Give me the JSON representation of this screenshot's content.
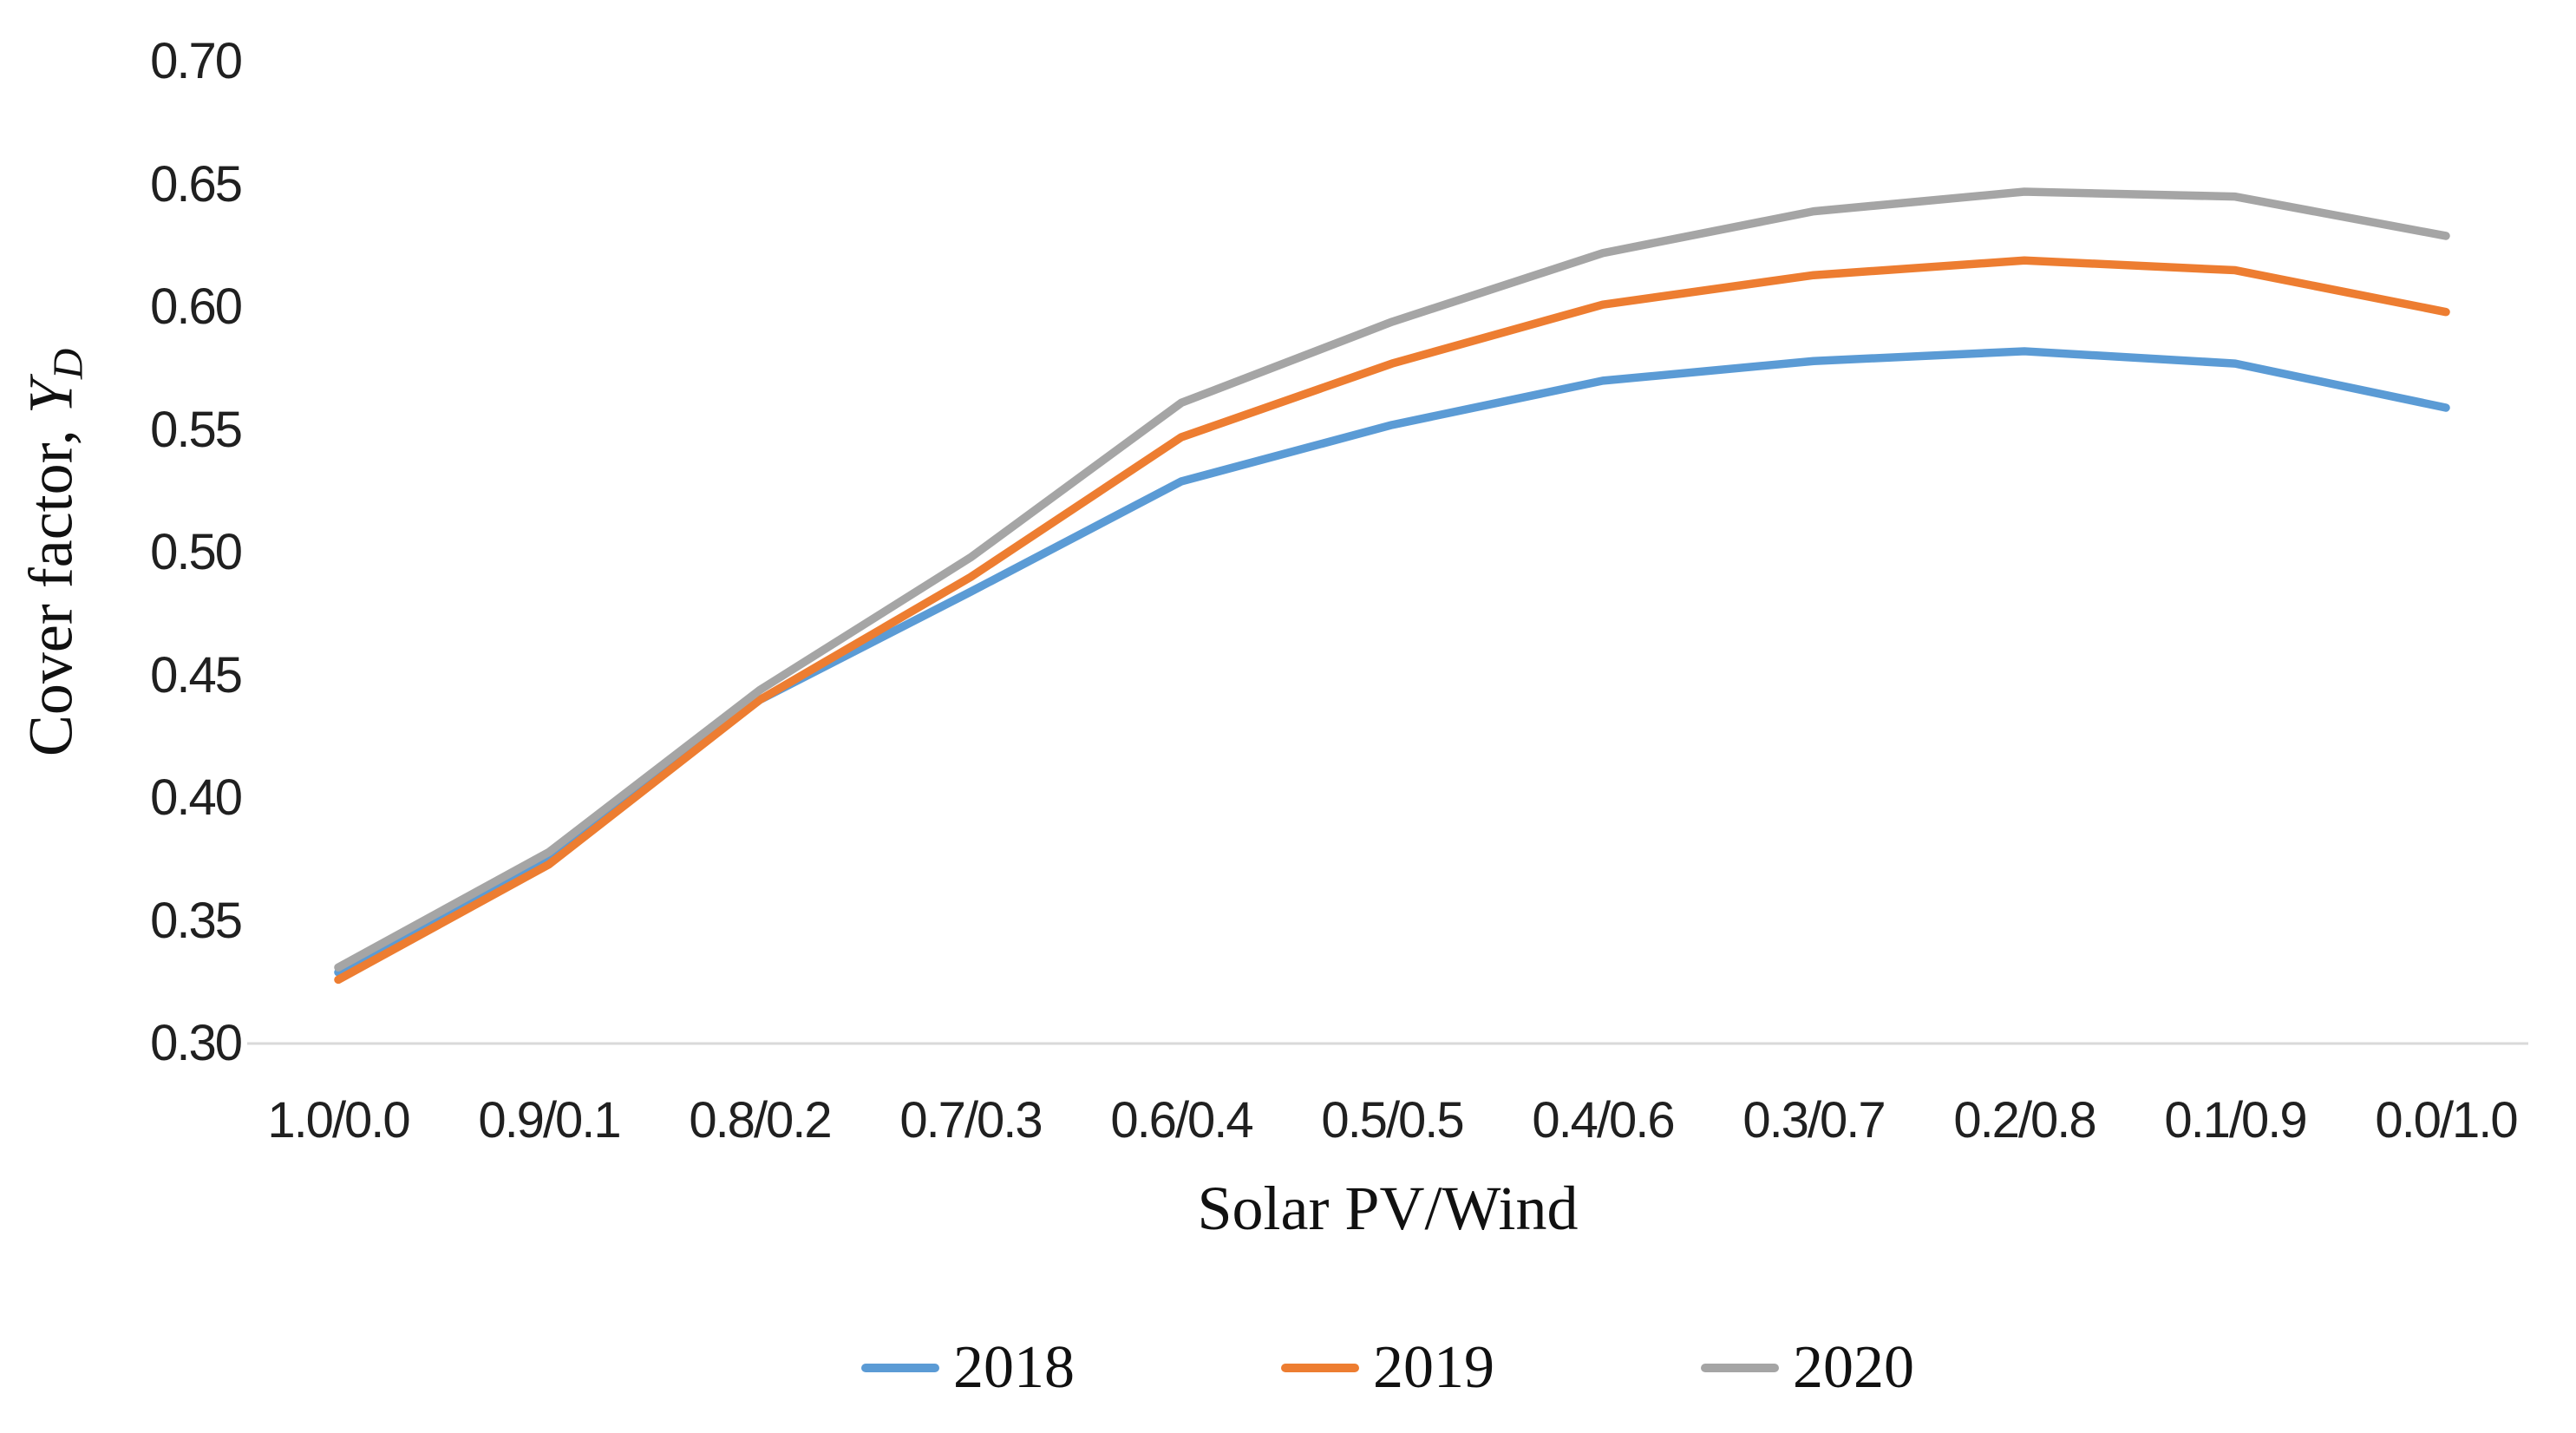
{
  "chart_data": {
    "type": "line",
    "title": "",
    "xlabel": "Solar PV/Wind",
    "ylabel": "Cover factor, YD",
    "ylabel_prefix": "Cover factor, ",
    "ylabel_symbol": "Y",
    "ylabel_subscript": "D",
    "categories": [
      "1.0/0.0",
      "0.9/0.1",
      "0.8/0.2",
      "0.7/0.3",
      "0.6/0.4",
      "0.5/0.5",
      "0.4/0.6",
      "0.3/0.7",
      "0.2/0.8",
      "0.1/0.9",
      "0.0/1.0"
    ],
    "yticks": [
      "0.30",
      "0.35",
      "0.40",
      "0.45",
      "0.50",
      "0.55",
      "0.60",
      "0.65",
      "0.70"
    ],
    "ylim": [
      0.3,
      0.7
    ],
    "grid": false,
    "legend_position": "bottom",
    "axis_line_color": "#d9d9d9",
    "text_color": "#202020",
    "series": [
      {
        "name": "2018",
        "color": "#5B9BD5",
        "values": [
          0.329,
          0.376,
          0.44,
          0.484,
          0.529,
          0.552,
          0.57,
          0.578,
          0.582,
          0.577,
          0.559
        ]
      },
      {
        "name": "2019",
        "color": "#ED7D31",
        "values": [
          0.326,
          0.373,
          0.44,
          0.49,
          0.547,
          0.577,
          0.601,
          0.613,
          0.619,
          0.615,
          0.598
        ]
      },
      {
        "name": "2020",
        "color": "#A5A5A5",
        "values": [
          0.331,
          0.378,
          0.444,
          0.498,
          0.561,
          0.594,
          0.622,
          0.639,
          0.647,
          0.645,
          0.629
        ]
      }
    ]
  }
}
